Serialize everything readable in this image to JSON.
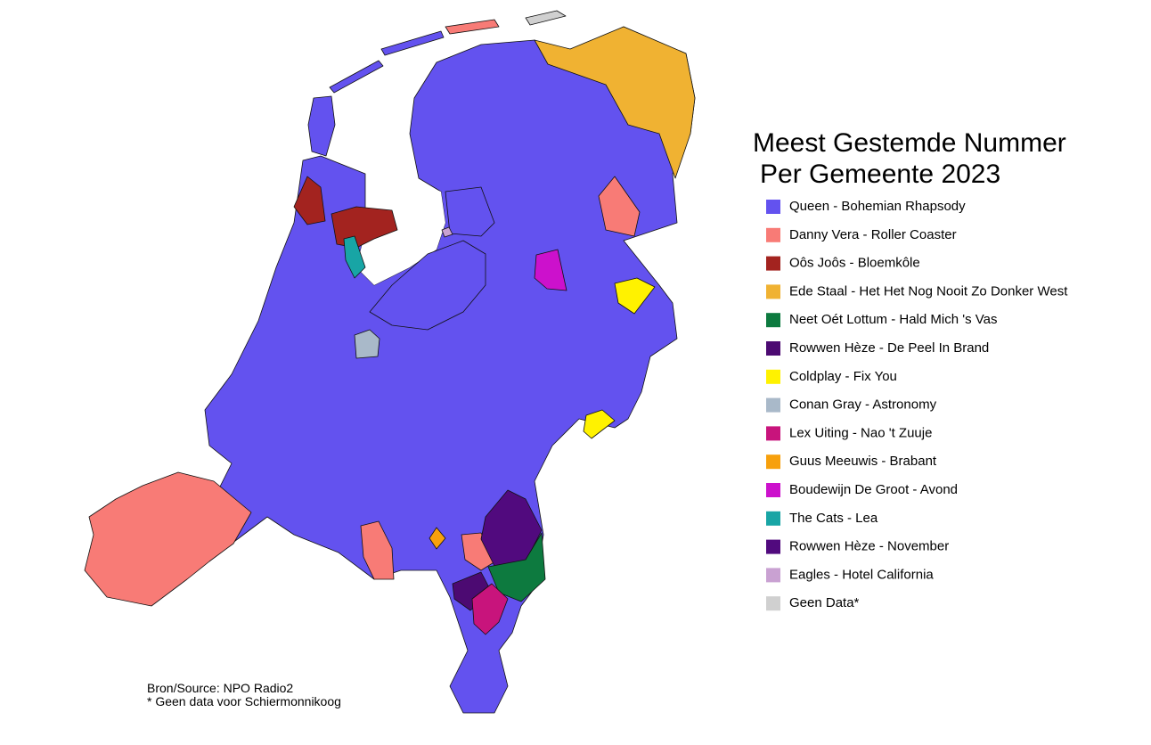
{
  "title_lines": [
    "Meest Gestemde Nummer",
    "Per Gemeente 2023"
  ],
  "legend": {
    "items": [
      {
        "label": "Queen - Bohemian Rhapsody",
        "color": "#6352ef"
      },
      {
        "label": "Danny Vera - Roller Coaster",
        "color": "#f87b76"
      },
      {
        "label": "Oôs Joôs - Bloemkôle",
        "color": "#a3231f"
      },
      {
        "label": "Ede Staal - Het Het Nog Nooit Zo Donker West",
        "color": "#f0b232"
      },
      {
        "label": "Neet Oét Lottum - Hald Mich 's Vas",
        "color": "#0d7a3f"
      },
      {
        "label": "Rowwen Hèze - De Peel In Brand",
        "color": "#4c0a72"
      },
      {
        "label": "Coldplay - Fix You",
        "color": "#fff200"
      },
      {
        "label": "Conan Gray - Astronomy",
        "color": "#a9b9c9"
      },
      {
        "label": "Lex Uiting - Nao 't Zuuje",
        "color": "#c8147c"
      },
      {
        "label": "Guus Meeuwis - Brabant",
        "color": "#f7a00c"
      },
      {
        "label": "Boudewijn De Groot - Avond",
        "color": "#cc11cc"
      },
      {
        "label": "The Cats - Lea",
        "color": "#18a5a5"
      },
      {
        "label": "Rowwen Hèze - November",
        "color": "#510a7e"
      },
      {
        "label": "Eagles - Hotel California",
        "color": "#c9a1d2"
      },
      {
        "label": "Geen Data*",
        "color": "#d0d0d0"
      }
    ]
  },
  "notes": [
    "Bron/Source: NPO Radio2",
    "* Geen data voor Schiermonnikoog"
  ]
}
